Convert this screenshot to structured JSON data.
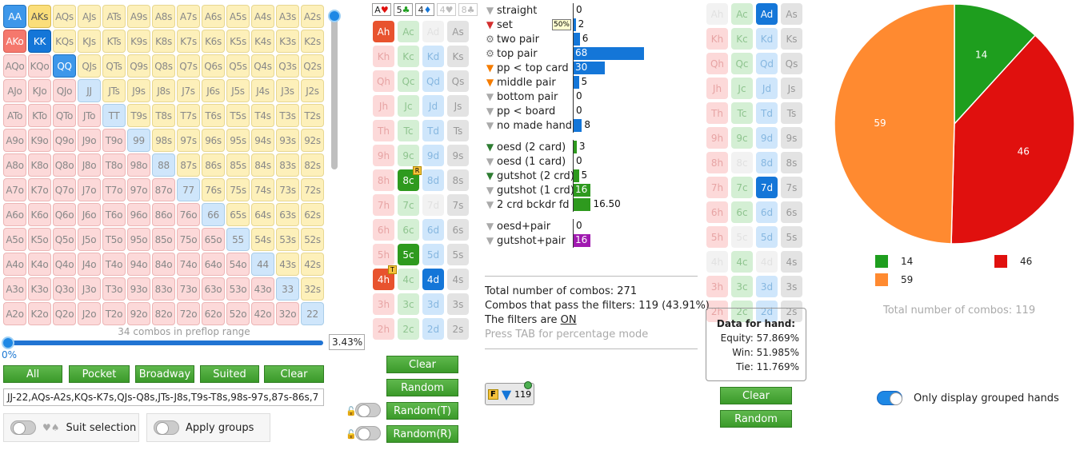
{
  "colors": {
    "green": "#1e9e1e",
    "red": "#e0100e",
    "orange": "#ff8a30",
    "blue": "#1476d8",
    "purple": "#a01ab0"
  },
  "matrix": {
    "cells": [
      "AA",
      "AKs",
      "AQs",
      "AJs",
      "ATs",
      "A9s",
      "A8s",
      "A7s",
      "A6s",
      "A5s",
      "A4s",
      "A3s",
      "A2s",
      "AKo",
      "KK",
      "KQs",
      "KJs",
      "KTs",
      "K9s",
      "K8s",
      "K7s",
      "K6s",
      "K5s",
      "K4s",
      "K3s",
      "K2s",
      "AQo",
      "KQo",
      "QQ",
      "QJs",
      "QTs",
      "Q9s",
      "Q8s",
      "Q7s",
      "Q6s",
      "Q5s",
      "Q4s",
      "Q3s",
      "Q2s",
      "AJo",
      "KJo",
      "QJo",
      "JJ",
      "JTs",
      "J9s",
      "J8s",
      "J7s",
      "J6s",
      "J5s",
      "J4s",
      "J3s",
      "J2s",
      "ATo",
      "KTo",
      "QTo",
      "JTo",
      "TT",
      "T9s",
      "T8s",
      "T7s",
      "T6s",
      "T5s",
      "T4s",
      "T3s",
      "T2s",
      "A9o",
      "K9o",
      "Q9o",
      "J9o",
      "T9o",
      "99",
      "98s",
      "97s",
      "96s",
      "95s",
      "94s",
      "93s",
      "92s",
      "A8o",
      "K8o",
      "Q8o",
      "J8o",
      "T8o",
      "98o",
      "88",
      "87s",
      "86s",
      "85s",
      "84s",
      "83s",
      "82s",
      "A7o",
      "K7o",
      "Q7o",
      "J7o",
      "T7o",
      "97o",
      "87o",
      "77",
      "76s",
      "75s",
      "74s",
      "73s",
      "72s",
      "A6o",
      "K6o",
      "Q6o",
      "J6o",
      "T6o",
      "96o",
      "86o",
      "76o",
      "66",
      "65s",
      "64s",
      "63s",
      "62s",
      "A5o",
      "K5o",
      "Q5o",
      "J5o",
      "T5o",
      "95o",
      "85o",
      "75o",
      "65o",
      "55",
      "54s",
      "53s",
      "52s",
      "A4o",
      "K4o",
      "Q4o",
      "J4o",
      "T4o",
      "94o",
      "84o",
      "74o",
      "64o",
      "54o",
      "44",
      "43s",
      "42s",
      "A3o",
      "K3o",
      "Q3o",
      "J3o",
      "T3o",
      "93o",
      "83o",
      "73o",
      "63o",
      "53o",
      "43o",
      "33",
      "32s",
      "A2o",
      "K2o",
      "Q2o",
      "J2o",
      "T2o",
      "92o",
      "82o",
      "72o",
      "62o",
      "52o",
      "42o",
      "32o",
      "22"
    ],
    "note": "34 combos in preflop range",
    "percent": "3.43%",
    "zero": "0%"
  },
  "range_buttons": [
    "All",
    "Pocket",
    "Broadway",
    "Suited",
    "Clear"
  ],
  "range_text": "JJ-22,AQs-A2s,KQs-K7s,QJs-Q8s,JTs-J8s,T9s-T8s,98s-97s,87s-86s,7",
  "toggles": {
    "suit_selection": "Suit selection",
    "apply_groups": "Apply groups"
  },
  "suit_filter": [
    {
      "rank": "A",
      "suit": "♥"
    },
    {
      "rank": "5",
      "suit": "♣"
    },
    {
      "rank": "4",
      "suit": "♦"
    },
    {
      "rank": "4",
      "suit": "♥"
    },
    {
      "rank": "8",
      "suit": "♣"
    }
  ],
  "board_left": {
    "cards": [
      [
        "Ah",
        "Ac",
        "Ad",
        "As"
      ],
      [
        "Kh",
        "Kc",
        "Kd",
        "Ks"
      ],
      [
        "Qh",
        "Qc",
        "Qd",
        "Qs"
      ],
      [
        "Jh",
        "Jc",
        "Jd",
        "Js"
      ],
      [
        "Th",
        "Tc",
        "Td",
        "Ts"
      ],
      [
        "9h",
        "9c",
        "9d",
        "9s"
      ],
      [
        "8h",
        "8c",
        "8d",
        "8s"
      ],
      [
        "7h",
        "7c",
        "7d",
        "7s"
      ],
      [
        "6h",
        "6c",
        "6d",
        "6s"
      ],
      [
        "5h",
        "5c",
        "5d",
        "5s"
      ],
      [
        "4h",
        "4c",
        "4d",
        "4s"
      ],
      [
        "3h",
        "3c",
        "3d",
        "3s"
      ],
      [
        "2h",
        "2c",
        "2d",
        "2s"
      ]
    ],
    "badge_8c": "R",
    "badge_4h": "T"
  },
  "board_buttons": {
    "clear": "Clear",
    "random": "Random",
    "random_t": "Random(T)",
    "random_r": "Random(R)"
  },
  "filters": [
    {
      "label": "straight",
      "count": "0",
      "value": 0,
      "icon": "grey"
    },
    {
      "label": "set",
      "count": "2",
      "value": 2,
      "icon": "red",
      "tag": "50%"
    },
    {
      "label": "two pair",
      "count": "6",
      "value": 6,
      "icon": "gear"
    },
    {
      "label": "top pair",
      "count": "68",
      "value": 68,
      "icon": "gear"
    },
    {
      "label": "pp < top card",
      "count": "30",
      "value": 30,
      "icon": "orange"
    },
    {
      "label": "middle pair",
      "count": "5",
      "value": 5,
      "icon": "orange"
    },
    {
      "label": "bottom pair",
      "count": "0",
      "value": 0,
      "icon": "grey"
    },
    {
      "label": "pp < board",
      "count": "0",
      "value": 0,
      "icon": "grey"
    },
    {
      "label": "no made hand",
      "count": "8",
      "value": 8,
      "icon": "grey"
    }
  ],
  "draws": [
    {
      "label": "oesd (2 card)",
      "count": "3",
      "value": 3,
      "icon": "green"
    },
    {
      "label": "oesd (1 card)",
      "count": "0",
      "value": 0,
      "icon": "grey"
    },
    {
      "label": "gutshot (2 crd)",
      "count": "5",
      "value": 5,
      "icon": "green"
    },
    {
      "label": "gutshot (1 crd)",
      "count": "16",
      "value": 16,
      "icon": "grey"
    },
    {
      "label": "2 crd bckdr fd",
      "count": "16.50",
      "value": 16.5,
      "icon": "grey"
    }
  ],
  "combos": [
    {
      "label": "oesd+pair",
      "count": "0",
      "value": 0,
      "icon": "grey"
    },
    {
      "label": "gutshot+pair",
      "count": "16",
      "value": 16,
      "icon": "grey"
    }
  ],
  "totals": {
    "total": "Total number of combos: 271",
    "pass": "Combos that pass the filters: 119 (43.91%)",
    "filters_prefix": "The filters are ",
    "filters_state": "ON",
    "tab": "Press TAB for percentage mode"
  },
  "filter_chip": {
    "letter": "F",
    "count": "119"
  },
  "hand_data": {
    "title": "Data for hand:",
    "equity": "Equity: 57.869%",
    "win": "Win: 51.985%",
    "tie": "Tie: 11.769%"
  },
  "right_buttons": {
    "clear": "Clear",
    "random": "Random"
  },
  "chart_data": {
    "type": "pie",
    "slices": [
      {
        "label": "14",
        "value": 14,
        "color": "#1e9e1e"
      },
      {
        "label": "46",
        "value": 46,
        "color": "#e0100e"
      },
      {
        "label": "59",
        "value": 59,
        "color": "#ff8a30"
      }
    ],
    "legend": [
      "14",
      "46",
      "59"
    ],
    "total": "Total number of combos: 119"
  },
  "grouped": "Only display grouped hands"
}
